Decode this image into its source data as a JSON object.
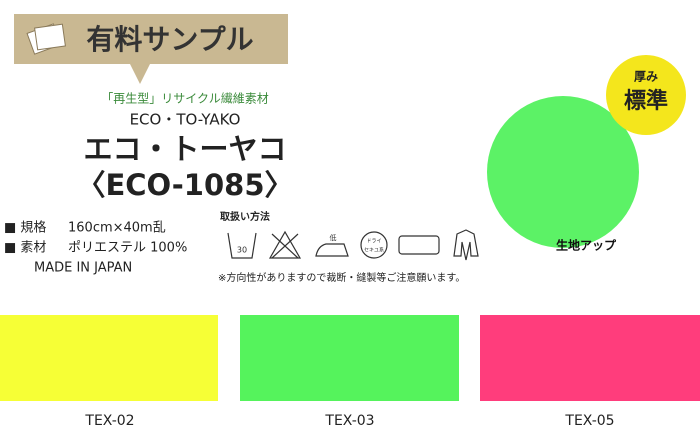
{
  "banner": {
    "title": "有料サンプル"
  },
  "product": {
    "tagline": "「再生型」リサイクル繊維素材",
    "romaji": "ECO・TO-YAKO",
    "name": "エコ・トーヤコ",
    "code": "〈ECO-1085〉"
  },
  "specs": {
    "size_label": "■ 規格",
    "size": "160cm×40m乱",
    "material_label": "■ 素材",
    "material": "ポリエステル 100%",
    "origin": "MADE IN JAPAN"
  },
  "care": {
    "title": "取扱い方法",
    "wash_temp": "30",
    "iron": "低",
    "dry_line1": "ドライ",
    "dry_line2": "セキユ系",
    "note": "※方向性がありますので裁断・縫製等ご注意願います。"
  },
  "closeup": {
    "label": "生地アップ",
    "badge_top": "厚み",
    "badge_bottom": "標準"
  },
  "swatches": [
    {
      "label": "TEX-02"
    },
    {
      "label": "TEX-03"
    },
    {
      "label": "TEX-05"
    }
  ]
}
